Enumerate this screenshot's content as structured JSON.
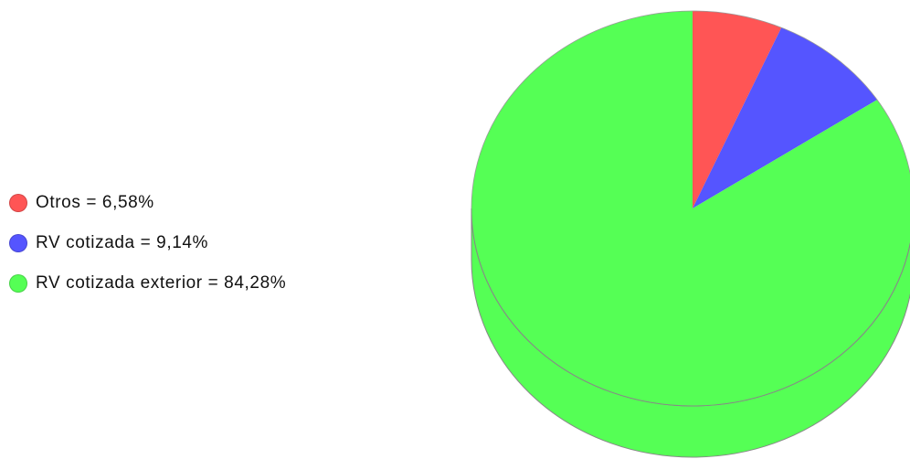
{
  "chart_data": {
    "type": "pie",
    "title": "",
    "legend_position": "left",
    "slices": [
      {
        "label": "Otros = 6,58%",
        "name": "Otros",
        "value": 6.58,
        "color": "#ff5555"
      },
      {
        "label": "RV cotizada = 9,14%",
        "name": "RV cotizada",
        "value": 9.14,
        "color": "#5555ff"
      },
      {
        "label": "RV cotizada exterior = 84,28%",
        "name": "RV cotizada exterior",
        "value": 84.28,
        "color": "#55ff55"
      }
    ]
  }
}
